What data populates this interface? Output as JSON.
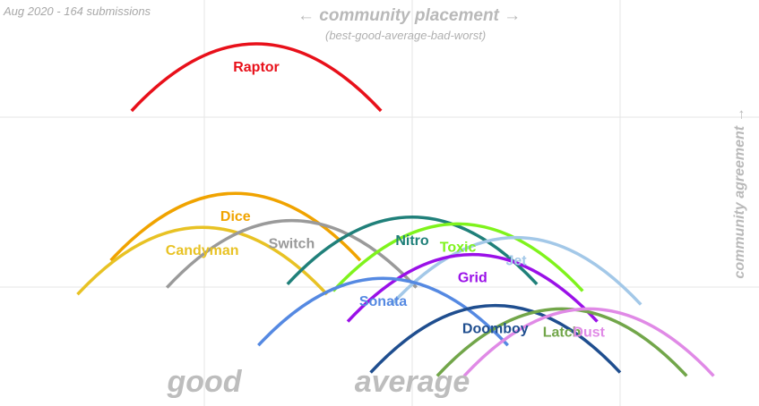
{
  "meta": {
    "subtitle": "Aug 2020 - 164 submissions",
    "x_title": "← community placement →",
    "x_subtitle": "(best-good-average-bad-worst)",
    "y_title": "community agreement →"
  },
  "chart_data": {
    "type": "line",
    "description_of_axes": "x = community placement (lower is better), y = community agreement",
    "x_band_labels": [
      {
        "label": "good",
        "x": 1
      },
      {
        "label": "average",
        "x": 2
      }
    ],
    "xlim": [
      0.1,
      2.5
    ],
    "ylim": [
      0.0,
      1.0
    ],
    "grid": true,
    "series": [
      {
        "name": "Raptor",
        "color": "#e8101a",
        "x": 1.25,
        "y": 0.9
      },
      {
        "name": "Dice",
        "color": "#f0a300",
        "x": 1.15,
        "y": 0.46
      },
      {
        "name": "Candyman",
        "color": "#e8c224",
        "x": 0.99,
        "y": 0.36
      },
      {
        "name": "Switch",
        "color": "#9a9a9a",
        "x": 1.42,
        "y": 0.38
      },
      {
        "name": "Nitro",
        "color": "#20807a",
        "x": 2.0,
        "y": 0.39
      },
      {
        "name": "Toxic",
        "color": "#7ff31c",
        "x": 2.22,
        "y": 0.37
      },
      {
        "name": "Jet",
        "color": "#a3c8e8",
        "x": 2.5,
        "y": 0.33
      },
      {
        "name": "Grid",
        "color": "#9a10e8",
        "x": 2.29,
        "y": 0.28
      },
      {
        "name": "Sonata",
        "color": "#5589e2",
        "x": 1.86,
        "y": 0.21
      },
      {
        "name": "Doomboy",
        "color": "#1f4e8f",
        "x": 2.4,
        "y": 0.13
      },
      {
        "name": "Latch",
        "color": "#72a64a",
        "x": 2.72,
        "y": 0.12
      },
      {
        "name": "Dust",
        "color": "#e08ae6",
        "x": 2.85,
        "y": 0.12
      }
    ]
  }
}
